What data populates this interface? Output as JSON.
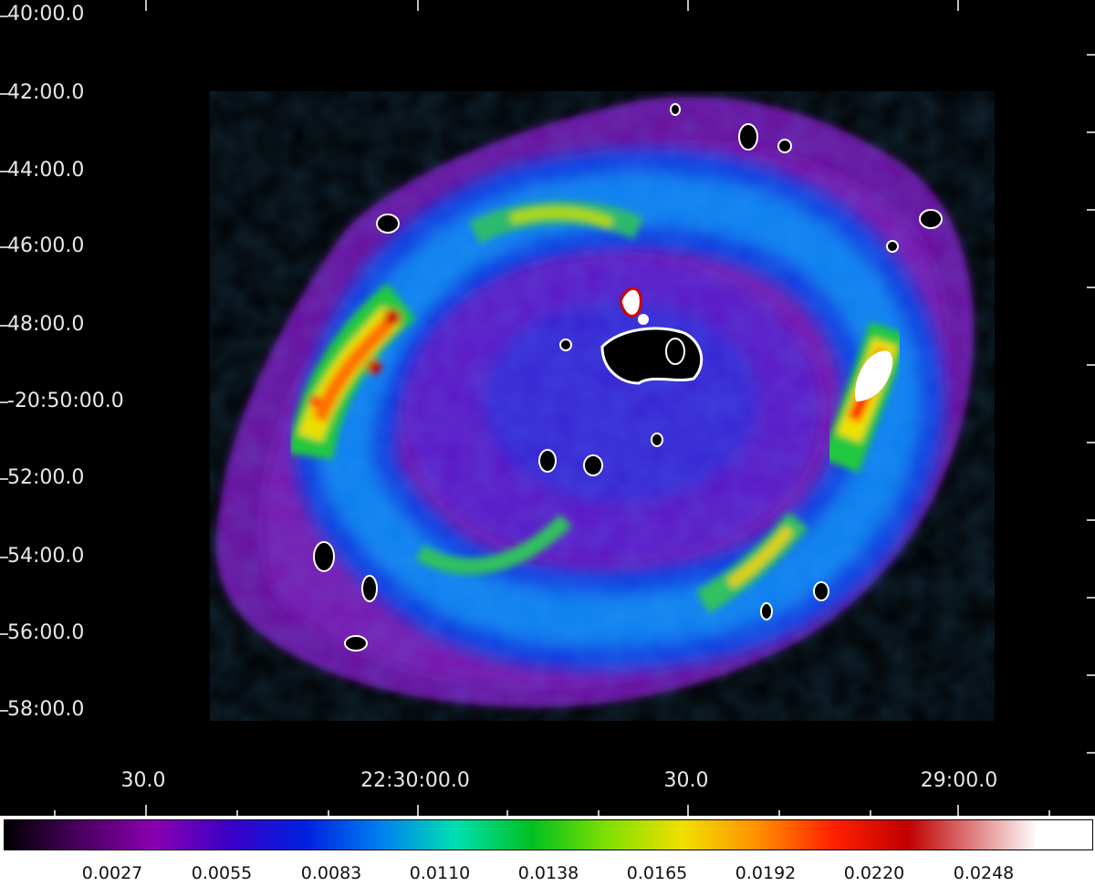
{
  "dec_labels": [
    "40:00.0",
    "42:00.0",
    "44:00.0",
    "46:00.0",
    "48:00.0",
    "-20:50:00.0",
    "52:00.0",
    "54:00.0",
    "56:00.0",
    "58:00.0"
  ],
  "ra_labels": [
    "30.0",
    "22:30:00.0",
    "30.0",
    "29:00.0"
  ],
  "colorbar_labels": [
    "0.0027",
    "0.0055",
    "0.0083",
    "0.0110",
    "0.0138",
    "0.0165",
    "0.0192",
    "0.0220",
    "0.0248"
  ],
  "colorbar_stops": [
    "#000000",
    "#4a0060",
    "#8a00b0",
    "#3a00c8",
    "#0020e0",
    "#0080f0",
    "#00e0b0",
    "#00c020",
    "#80e000",
    "#f0e000",
    "#ff9000",
    "#ff2000",
    "#c00000",
    "#ffffff"
  ],
  "image_icon": "nebula-image"
}
